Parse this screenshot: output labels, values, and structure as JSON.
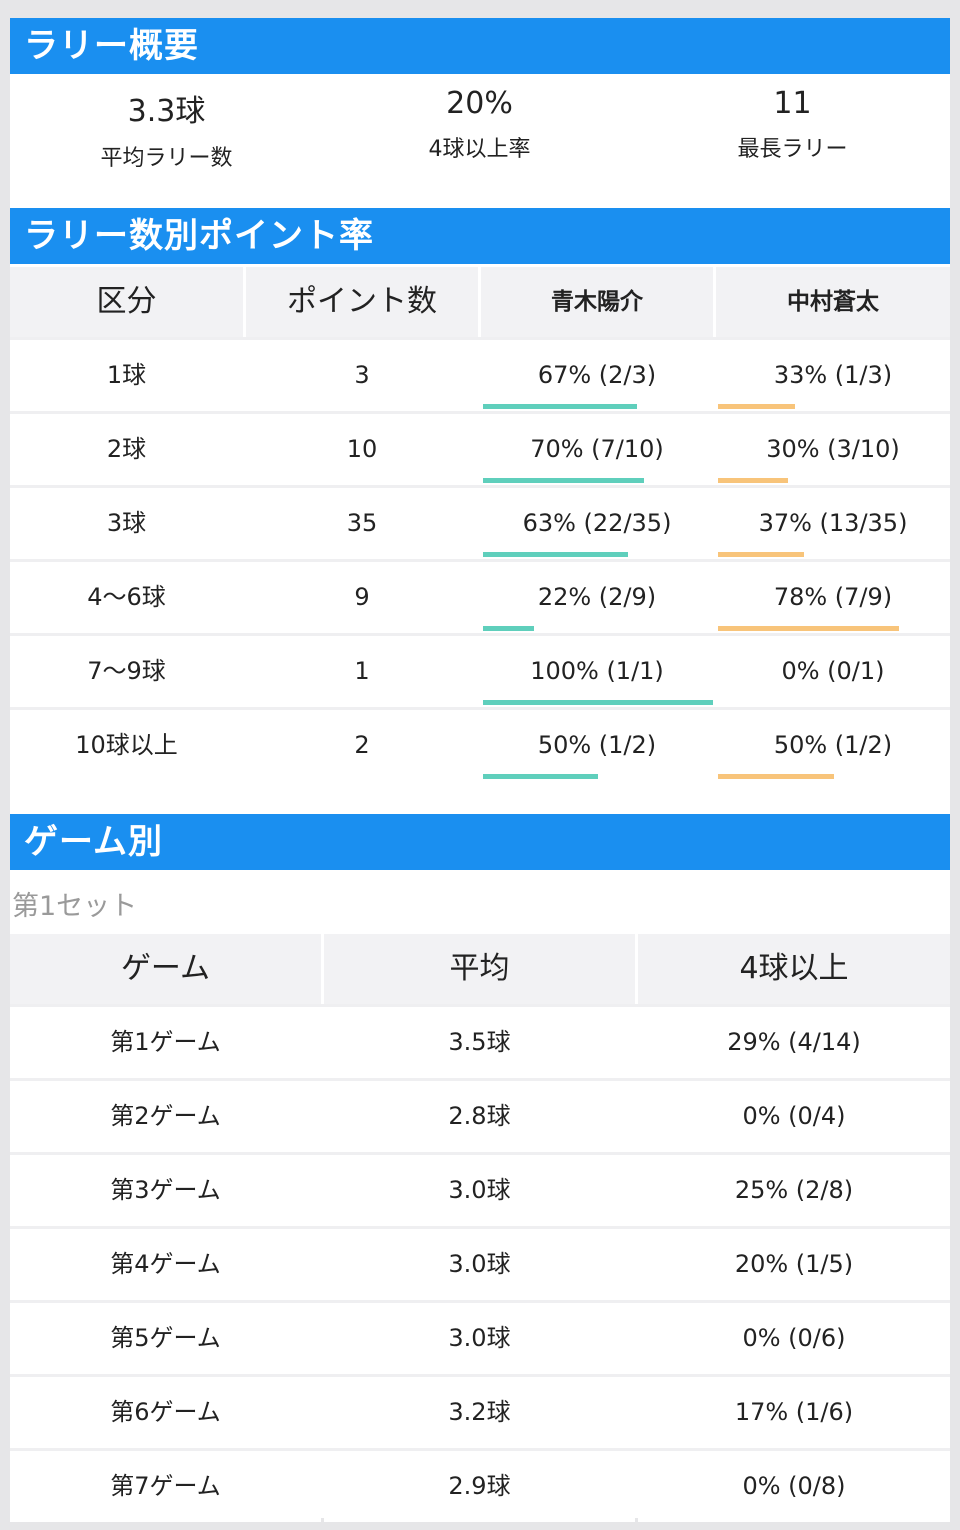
{
  "summary": {
    "title": "ラリー概要",
    "items": [
      {
        "value": "3.3球",
        "label": "平均ラリー数"
      },
      {
        "value": "20%",
        "label": "4球以上率"
      },
      {
        "value": "11",
        "label": "最長ラリー"
      }
    ]
  },
  "point_rate": {
    "title": "ラリー数別ポイント率",
    "headers": [
      "区分",
      "ポイント数",
      "青木陽介",
      "中村蒼太"
    ],
    "rows": [
      {
        "category": "1球",
        "points": "3",
        "p1": "67% (2/3)",
        "p2": "33% (1/3)",
        "p1_rate": 0.67,
        "p2_rate": 0.33
      },
      {
        "category": "2球",
        "points": "10",
        "p1": "70% (7/10)",
        "p2": "30% (3/10)",
        "p1_rate": 0.7,
        "p2_rate": 0.3
      },
      {
        "category": "3球",
        "points": "35",
        "p1": "63% (22/35)",
        "p2": "37% (13/35)",
        "p1_rate": 0.63,
        "p2_rate": 0.37
      },
      {
        "category": "4〜6球",
        "points": "9",
        "p1": "22% (2/9)",
        "p2": "78% (7/9)",
        "p1_rate": 0.22,
        "p2_rate": 0.78
      },
      {
        "category": "7〜9球",
        "points": "1",
        "p1": "100% (1/1)",
        "p2": "0% (0/1)",
        "p1_rate": 1.0,
        "p2_rate": 0.0
      },
      {
        "category": "10球以上",
        "points": "2",
        "p1": "50% (1/2)",
        "p2": "50% (1/2)",
        "p1_rate": 0.5,
        "p2_rate": 0.5
      }
    ],
    "colors": {
      "player1": "#5fcfbc",
      "player2": "#f8c47a"
    }
  },
  "games": {
    "title": "ゲーム別",
    "set_title": "第1セット",
    "headers": [
      "ゲーム",
      "平均",
      "4球以上"
    ],
    "rows": [
      {
        "game": "第1ゲーム",
        "avg": "3.5球",
        "over4": "29% (4/14)"
      },
      {
        "game": "第2ゲーム",
        "avg": "2.8球",
        "over4": "0% (0/4)"
      },
      {
        "game": "第3ゲーム",
        "avg": "3.0球",
        "over4": "25% (2/8)"
      },
      {
        "game": "第4ゲーム",
        "avg": "3.0球",
        "over4": "20% (1/5)"
      },
      {
        "game": "第5ゲーム",
        "avg": "3.0球",
        "over4": "0% (0/6)"
      },
      {
        "game": "第6ゲーム",
        "avg": "3.2球",
        "over4": "17% (1/6)"
      },
      {
        "game": "第7ゲーム",
        "avg": "2.9球",
        "over4": "0% (0/8)"
      }
    ]
  },
  "colors": {
    "header": "#1a8ff0",
    "table_header_bg": "#f2f2f4"
  }
}
